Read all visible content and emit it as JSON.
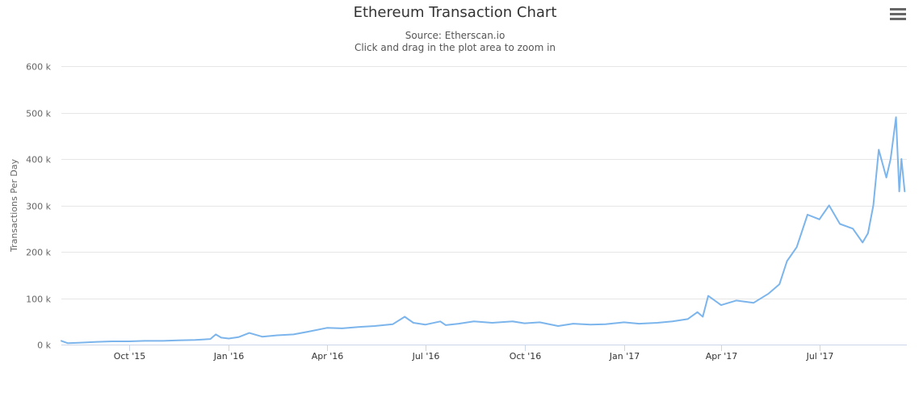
{
  "chart_data": {
    "type": "line",
    "title": "Ethereum Transaction Chart",
    "subtitle": [
      "Source: Etherscan.io",
      "Click and drag in the plot area to zoom in"
    ],
    "xlabel": "",
    "ylabel": "Transactions Per Day",
    "ylim": [
      0,
      600000
    ],
    "yticks": [
      0,
      100000,
      200000,
      300000,
      400000,
      500000,
      600000
    ],
    "ytick_labels": [
      "0 k",
      "100 k",
      "200 k",
      "300 k",
      "400 k",
      "500 k",
      "600 k"
    ],
    "xtick_labels": [
      "Oct '15",
      "Jan '16",
      "Apr '16",
      "Jul '16",
      "Oct '16",
      "Jan '17",
      "Apr '17",
      "Jul '17"
    ],
    "xtick_dates": [
      "2015-10-01",
      "2016-01-01",
      "2016-04-01",
      "2016-07-01",
      "2016-10-01",
      "2017-01-01",
      "2017-04-01",
      "2017-07-01"
    ],
    "xlim": [
      "2015-07-30",
      "2017-09-20"
    ],
    "grid": true,
    "line_color": "#7cb5ec",
    "series": [
      {
        "x": [
          "2015-07-30",
          "2015-08-05",
          "2015-08-15",
          "2015-09-01",
          "2015-09-15",
          "2015-10-01",
          "2015-10-15",
          "2015-11-01",
          "2015-11-15",
          "2015-12-01",
          "2015-12-15",
          "2015-12-20",
          "2015-12-25",
          "2016-01-01",
          "2016-01-10",
          "2016-01-20",
          "2016-02-01",
          "2016-02-15",
          "2016-03-01",
          "2016-03-15",
          "2016-04-01",
          "2016-04-15",
          "2016-05-01",
          "2016-05-15",
          "2016-06-01",
          "2016-06-12",
          "2016-06-20",
          "2016-07-01",
          "2016-07-15",
          "2016-07-20",
          "2016-08-01",
          "2016-08-15",
          "2016-09-01",
          "2016-09-20",
          "2016-10-01",
          "2016-10-15",
          "2016-11-01",
          "2016-11-15",
          "2016-12-01",
          "2016-12-15",
          "2017-01-01",
          "2017-01-15",
          "2017-02-01",
          "2017-02-15",
          "2017-03-01",
          "2017-03-10",
          "2017-03-15",
          "2017-03-20",
          "2017-04-01",
          "2017-04-15",
          "2017-05-01",
          "2017-05-15",
          "2017-05-25",
          "2017-06-01",
          "2017-06-10",
          "2017-06-20",
          "2017-07-01",
          "2017-07-10",
          "2017-07-20",
          "2017-08-01",
          "2017-08-10",
          "2017-08-15",
          "2017-08-20",
          "2017-08-25",
          "2017-09-01",
          "2017-09-05",
          "2017-09-10",
          "2017-09-13",
          "2017-09-15",
          "2017-09-18"
        ],
        "values": [
          8000,
          3000,
          4000,
          6000,
          7000,
          7000,
          8000,
          8000,
          9000,
          10000,
          12000,
          22000,
          15000,
          13000,
          16000,
          25000,
          17000,
          20000,
          22000,
          28000,
          36000,
          35000,
          38000,
          40000,
          44000,
          60000,
          47000,
          43000,
          50000,
          42000,
          45000,
          50000,
          47000,
          50000,
          46000,
          48000,
          40000,
          45000,
          43000,
          44000,
          48000,
          45000,
          47000,
          50000,
          55000,
          70000,
          60000,
          105000,
          85000,
          95000,
          90000,
          110000,
          130000,
          180000,
          210000,
          280000,
          270000,
          300000,
          260000,
          250000,
          220000,
          240000,
          300000,
          420000,
          360000,
          400000,
          490000,
          330000,
          400000,
          330000
        ]
      }
    ]
  },
  "menu": {
    "icon": "hamburger-menu-icon"
  }
}
